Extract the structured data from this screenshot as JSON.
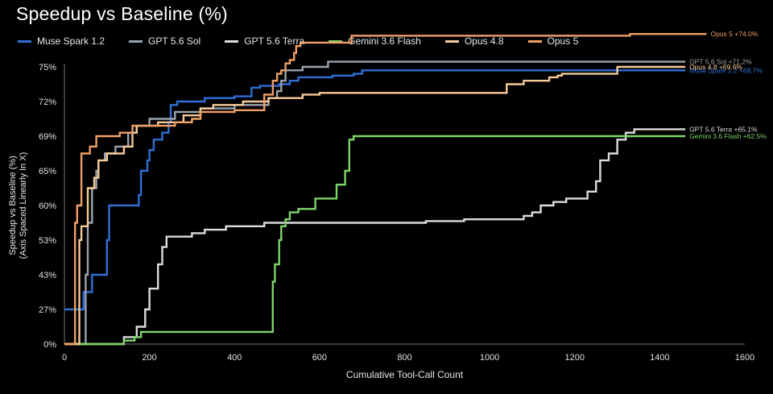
{
  "chart_data": {
    "type": "line",
    "title": "Speedup vs Baseline (%)",
    "xlabel": "Cumulative Tool-Call Count",
    "ylabel_line1": "Speedup vs Baseline (%)",
    "ylabel_line2": "(Axis Spaced Linearly In X)",
    "xlim": [
      0,
      1600
    ],
    "xticks": [
      0,
      200,
      400,
      600,
      800,
      1000,
      1200,
      1400,
      1600
    ],
    "yticks": [
      "0%",
      "27%",
      "43%",
      "53%",
      "60%",
      "65%",
      "69%",
      "72%",
      "75%"
    ],
    "grid": false,
    "legend_position": "top",
    "series": [
      {
        "name": "Muse Spark 1.2",
        "color": "#2f6fd6",
        "end_label": "Muse Spark 1.2 +68.7%",
        "points": [
          [
            0,
            1
          ],
          [
            45,
            1
          ],
          [
            45,
            1.5
          ],
          [
            65,
            1.5
          ],
          [
            65,
            2
          ],
          [
            100,
            2
          ],
          [
            100,
            3
          ],
          [
            105,
            3
          ],
          [
            105,
            4
          ],
          [
            160,
            4
          ],
          [
            160,
            4
          ],
          [
            175,
            4
          ],
          [
            175,
            4.3
          ],
          [
            180,
            4.3
          ],
          [
            180,
            5
          ],
          [
            195,
            5
          ],
          [
            195,
            5.3
          ],
          [
            200,
            5.3
          ],
          [
            200,
            5.6
          ],
          [
            210,
            5.6
          ],
          [
            210,
            5.9
          ],
          [
            230,
            5.9
          ],
          [
            230,
            6.1
          ],
          [
            245,
            6.1
          ],
          [
            245,
            6.4
          ],
          [
            250,
            6.4
          ],
          [
            250,
            6.9
          ],
          [
            265,
            6.9
          ],
          [
            265,
            7.0
          ],
          [
            330,
            7.0
          ],
          [
            330,
            7.1
          ],
          [
            400,
            7.1
          ],
          [
            400,
            7.15
          ],
          [
            440,
            7.15
          ],
          [
            440,
            7.4
          ],
          [
            460,
            7.4
          ],
          [
            460,
            7.45
          ],
          [
            505,
            7.45
          ],
          [
            505,
            7.5
          ],
          [
            530,
            7.5
          ],
          [
            530,
            7.6
          ],
          [
            550,
            7.6
          ],
          [
            550,
            7.7
          ],
          [
            630,
            7.7
          ],
          [
            630,
            7.75
          ],
          [
            680,
            7.75
          ],
          [
            680,
            7.8
          ],
          [
            700,
            7.8
          ],
          [
            700,
            7.9
          ],
          [
            1460,
            7.9
          ]
        ]
      },
      {
        "name": "GPT 5.6 Sol",
        "color": "#9aa3ad",
        "end_label": "GPT 5.6 Sol +71.2%",
        "points": [
          [
            0,
            0
          ],
          [
            50,
            0
          ],
          [
            50,
            2
          ],
          [
            55,
            2
          ],
          [
            55,
            3.5
          ],
          [
            65,
            3.5
          ],
          [
            65,
            4.5
          ],
          [
            75,
            4.5
          ],
          [
            75,
            5
          ],
          [
            80,
            5
          ],
          [
            80,
            5.3
          ],
          [
            95,
            5.3
          ],
          [
            95,
            5.5
          ],
          [
            120,
            5.5
          ],
          [
            120,
            5.7
          ],
          [
            150,
            5.7
          ],
          [
            150,
            6.1
          ],
          [
            170,
            6.1
          ],
          [
            170,
            6.3
          ],
          [
            200,
            6.3
          ],
          [
            200,
            6.5
          ],
          [
            260,
            6.5
          ],
          [
            260,
            6.7
          ],
          [
            320,
            6.7
          ],
          [
            320,
            6.8
          ],
          [
            400,
            6.8
          ],
          [
            400,
            6.9
          ],
          [
            480,
            6.9
          ],
          [
            480,
            7.1
          ],
          [
            500,
            7.1
          ],
          [
            500,
            7.3
          ],
          [
            510,
            7.3
          ],
          [
            510,
            7.6
          ],
          [
            520,
            7.6
          ],
          [
            520,
            7.9
          ],
          [
            560,
            7.9
          ],
          [
            560,
            8.0
          ],
          [
            620,
            8.0
          ],
          [
            620,
            8.15
          ],
          [
            1460,
            8.15
          ]
        ]
      },
      {
        "name": "GPT 5.6 Terra",
        "color": "#dcdcdc",
        "end_label": "GPT 5.6 Terra +65.1%",
        "points": [
          [
            0,
            0
          ],
          [
            140,
            0
          ],
          [
            140,
            0.2
          ],
          [
            170,
            0.2
          ],
          [
            170,
            0.5
          ],
          [
            190,
            0.5
          ],
          [
            190,
            1
          ],
          [
            200,
            1
          ],
          [
            200,
            1.6
          ],
          [
            220,
            1.6
          ],
          [
            220,
            2.3
          ],
          [
            230,
            2.3
          ],
          [
            230,
            2.8
          ],
          [
            240,
            2.8
          ],
          [
            240,
            3.1
          ],
          [
            300,
            3.1
          ],
          [
            300,
            3.2
          ],
          [
            330,
            3.2
          ],
          [
            330,
            3.3
          ],
          [
            380,
            3.3
          ],
          [
            380,
            3.4
          ],
          [
            470,
            3.4
          ],
          [
            470,
            3.5
          ],
          [
            850,
            3.5
          ],
          [
            850,
            3.55
          ],
          [
            940,
            3.55
          ],
          [
            940,
            3.6
          ],
          [
            1080,
            3.6
          ],
          [
            1080,
            3.7
          ],
          [
            1100,
            3.7
          ],
          [
            1100,
            3.8
          ],
          [
            1120,
            3.8
          ],
          [
            1120,
            4.0
          ],
          [
            1150,
            4.0
          ],
          [
            1150,
            4.1
          ],
          [
            1180,
            4.1
          ],
          [
            1180,
            4.2
          ],
          [
            1230,
            4.2
          ],
          [
            1230,
            4.4
          ],
          [
            1250,
            4.4
          ],
          [
            1250,
            4.7
          ],
          [
            1260,
            4.7
          ],
          [
            1260,
            5.3
          ],
          [
            1280,
            5.3
          ],
          [
            1280,
            5.5
          ],
          [
            1300,
            5.5
          ],
          [
            1300,
            5.9
          ],
          [
            1320,
            5.9
          ],
          [
            1320,
            6.1
          ],
          [
            1340,
            6.1
          ],
          [
            1340,
            6.2
          ],
          [
            1460,
            6.2
          ]
        ]
      },
      {
        "name": "Gemini 3.6 Flash",
        "color": "#7ed36a",
        "end_label": "Gemini 3.6 Flash +62.5%",
        "points": [
          [
            0,
            0
          ],
          [
            140,
            0
          ],
          [
            140,
            0.1
          ],
          [
            165,
            0.1
          ],
          [
            165,
            0.2
          ],
          [
            180,
            0.2
          ],
          [
            180,
            0.35
          ],
          [
            490,
            0.35
          ],
          [
            490,
            1.8
          ],
          [
            495,
            1.8
          ],
          [
            495,
            2.3
          ],
          [
            505,
            2.3
          ],
          [
            505,
            3.0
          ],
          [
            510,
            3.0
          ],
          [
            510,
            3.4
          ],
          [
            520,
            3.4
          ],
          [
            520,
            3.6
          ],
          [
            530,
            3.6
          ],
          [
            530,
            3.8
          ],
          [
            550,
            3.8
          ],
          [
            550,
            3.9
          ],
          [
            590,
            3.9
          ],
          [
            590,
            4.2
          ],
          [
            640,
            4.2
          ],
          [
            640,
            4.6
          ],
          [
            660,
            4.6
          ],
          [
            660,
            5.0
          ],
          [
            670,
            5.0
          ],
          [
            670,
            5.9
          ],
          [
            680,
            5.9
          ],
          [
            680,
            6.0
          ],
          [
            1460,
            6.0
          ]
        ]
      },
      {
        "name": "Opus 4.8",
        "color": "#f5c998",
        "end_label": "Opus 4.8 +69.6%",
        "points": [
          [
            0,
            0
          ],
          [
            35,
            0
          ],
          [
            35,
            3.0
          ],
          [
            40,
            3.0
          ],
          [
            40,
            3.4
          ],
          [
            55,
            3.4
          ],
          [
            55,
            4.5
          ],
          [
            70,
            4.5
          ],
          [
            70,
            4.8
          ],
          [
            80,
            4.8
          ],
          [
            80,
            5.3
          ],
          [
            100,
            5.3
          ],
          [
            100,
            5.5
          ],
          [
            140,
            5.5
          ],
          [
            140,
            5.7
          ],
          [
            160,
            5.7
          ],
          [
            160,
            6.1
          ],
          [
            170,
            6.1
          ],
          [
            170,
            6.3
          ],
          [
            220,
            6.3
          ],
          [
            220,
            6.4
          ],
          [
            280,
            6.4
          ],
          [
            280,
            6.6
          ],
          [
            320,
            6.6
          ],
          [
            320,
            6.8
          ],
          [
            350,
            6.8
          ],
          [
            350,
            6.9
          ],
          [
            420,
            6.9
          ],
          [
            420,
            7.0
          ],
          [
            480,
            7.0
          ],
          [
            480,
            7.1
          ],
          [
            560,
            7.1
          ],
          [
            560,
            7.2
          ],
          [
            600,
            7.2
          ],
          [
            600,
            7.25
          ],
          [
            1040,
            7.25
          ],
          [
            1040,
            7.5
          ],
          [
            1080,
            7.5
          ],
          [
            1080,
            7.6
          ],
          [
            1140,
            7.6
          ],
          [
            1140,
            7.7
          ],
          [
            1160,
            7.7
          ],
          [
            1160,
            7.75
          ],
          [
            1170,
            7.75
          ],
          [
            1170,
            7.8
          ],
          [
            1300,
            7.8
          ],
          [
            1300,
            8.0
          ],
          [
            1460,
            8.0
          ]
        ]
      },
      {
        "name": "Opus 5",
        "color": "#f0a066",
        "end_label": "Opus 5 +74.0%",
        "points": [
          [
            0,
            0
          ],
          [
            25,
            0
          ],
          [
            25,
            3.5
          ],
          [
            30,
            3.5
          ],
          [
            30,
            4.0
          ],
          [
            40,
            4.0
          ],
          [
            40,
            5.5
          ],
          [
            60,
            5.5
          ],
          [
            60,
            5.7
          ],
          [
            75,
            5.7
          ],
          [
            75,
            6.0
          ],
          [
            130,
            6.0
          ],
          [
            130,
            6.1
          ],
          [
            160,
            6.1
          ],
          [
            160,
            6.3
          ],
          [
            260,
            6.3
          ],
          [
            260,
            6.4
          ],
          [
            300,
            6.4
          ],
          [
            300,
            6.5
          ],
          [
            320,
            6.5
          ],
          [
            320,
            6.7
          ],
          [
            400,
            6.7
          ],
          [
            400,
            6.75
          ],
          [
            470,
            6.75
          ],
          [
            470,
            7.2
          ],
          [
            490,
            7.2
          ],
          [
            490,
            7.6
          ],
          [
            500,
            7.6
          ],
          [
            500,
            7.8
          ],
          [
            510,
            7.8
          ],
          [
            510,
            7.9
          ],
          [
            520,
            7.9
          ],
          [
            520,
            8.1
          ],
          [
            530,
            8.1
          ],
          [
            530,
            8.2
          ],
          [
            540,
            8.2
          ],
          [
            540,
            8.4
          ],
          [
            545,
            8.4
          ],
          [
            545,
            8.6
          ],
          [
            555,
            8.6
          ],
          [
            555,
            8.7
          ],
          [
            675,
            8.7
          ],
          [
            675,
            8.9
          ],
          [
            1330,
            8.9
          ],
          [
            1330,
            8.95
          ],
          [
            1510,
            8.95
          ]
        ]
      }
    ]
  }
}
